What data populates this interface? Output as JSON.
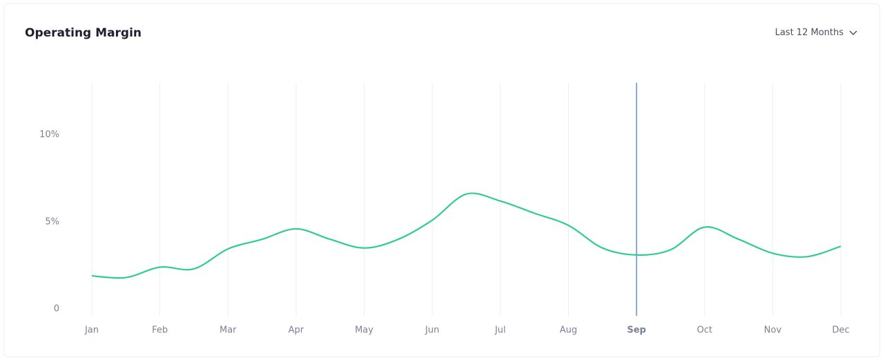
{
  "filter": {
    "label": "Last 12 Months"
  },
  "chart_data": {
    "type": "line",
    "title": "Operating Margin",
    "categories": [
      "Jan",
      null,
      "Feb",
      null,
      "Mar",
      null,
      "Apr",
      null,
      "May",
      null,
      "Jun",
      null,
      "Jul",
      null,
      "Aug",
      null,
      "Sep",
      null,
      "Oct",
      null,
      "Nov",
      null,
      "Dec"
    ],
    "series": [
      {
        "name": "Operating Margin",
        "color": "#2ecc8f",
        "values": [
          1.9,
          1.8,
          2.4,
          2.3,
          3.45,
          4.0,
          4.6,
          4.0,
          3.5,
          4.0,
          5.1,
          6.6,
          6.2,
          5.5,
          4.8,
          3.5,
          3.1,
          3.4,
          4.7,
          4.0,
          3.2,
          3.0,
          3.6
        ]
      }
    ],
    "ylim": [
      0,
      13
    ],
    "yticks": [
      0,
      {
        "value": 5,
        "label": "5%"
      },
      {
        "value": 10,
        "label": "10%"
      }
    ],
    "grid": true,
    "highlight": "Sep",
    "highlight_color": "#5b8fe0"
  }
}
